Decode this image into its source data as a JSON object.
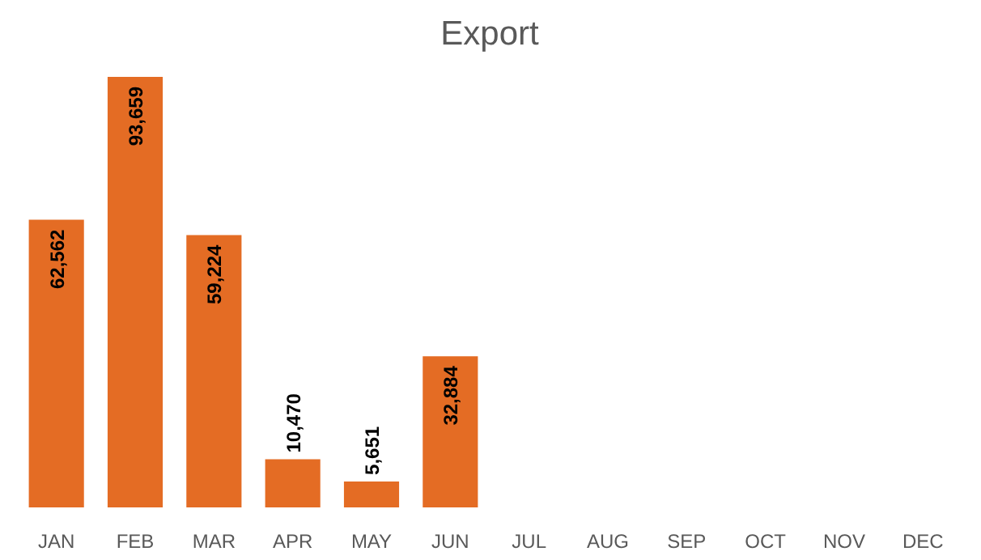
{
  "chart_data": {
    "type": "bar",
    "title": "Export",
    "categories": [
      "JAN",
      "FEB",
      "MAR",
      "APR",
      "MAY",
      "JUN",
      "JUL",
      "AUG",
      "SEP",
      "OCT",
      "NOV",
      "DEC"
    ],
    "values": [
      62562,
      93659,
      59224,
      10470,
      5651,
      32884,
      null,
      null,
      null,
      null,
      null,
      null
    ],
    "value_labels": [
      "62,562",
      "93,659",
      "59,224",
      "10,470",
      "5,651",
      "32,884",
      null,
      null,
      null,
      null,
      null,
      null
    ],
    "color": "#e46c24",
    "grid": false
  }
}
